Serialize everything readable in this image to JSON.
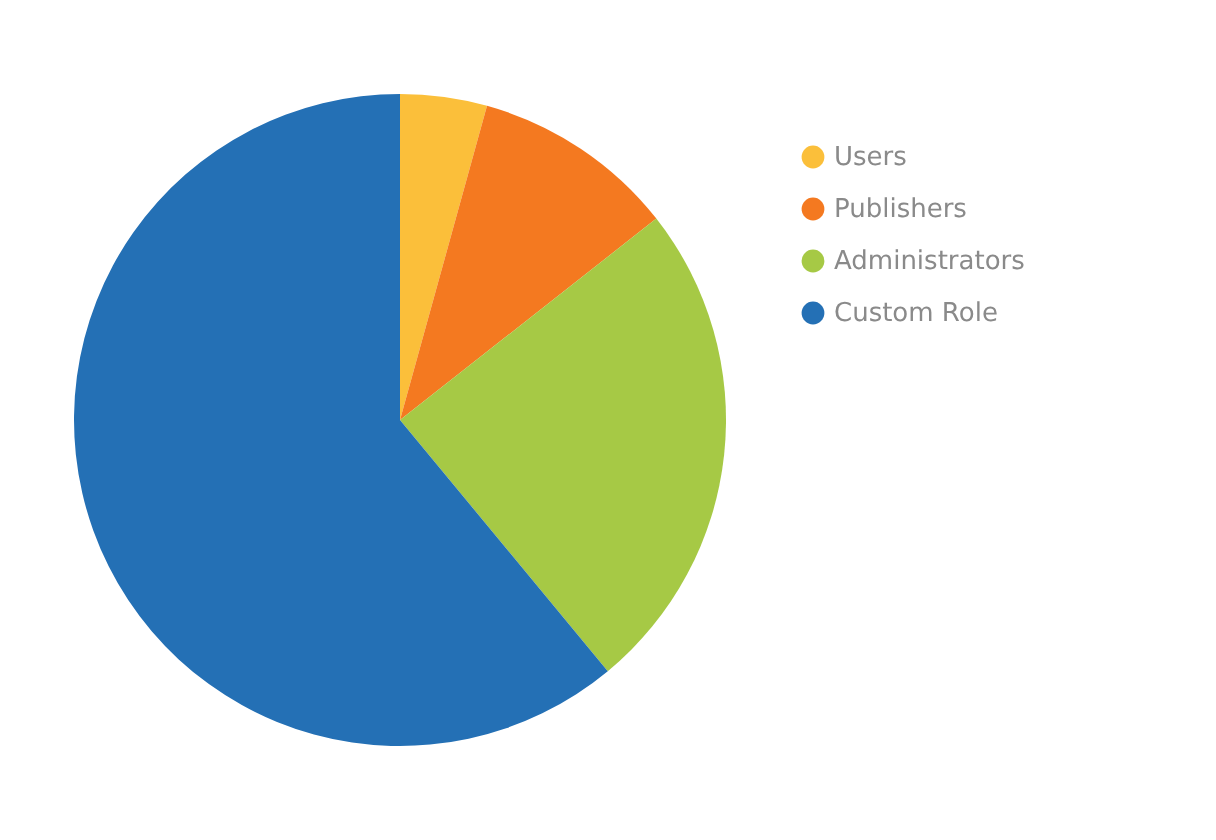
{
  "chart_data": {
    "type": "pie",
    "categories": [
      "Users",
      "Publishers",
      "Administrators",
      "Custom Role"
    ],
    "values": [
      4.3,
      10.1,
      24.6,
      61.0
    ],
    "colors": [
      "#fbbf3a",
      "#f47920",
      "#a6c945",
      "#2470b5"
    ],
    "legend": "right"
  }
}
